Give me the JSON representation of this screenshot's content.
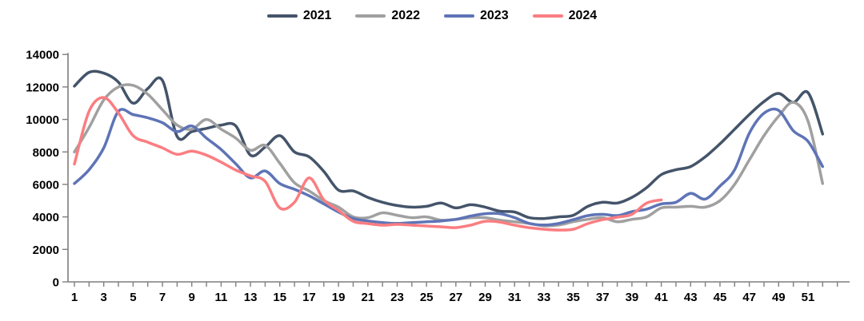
{
  "chart_data": {
    "type": "line",
    "title": "",
    "xlabel": "",
    "ylabel": "",
    "x_unit": "week-number",
    "x_weeks_range": [
      1,
      52
    ],
    "x_tick_labels": [
      1,
      3,
      5,
      7,
      9,
      11,
      13,
      15,
      17,
      19,
      21,
      23,
      25,
      27,
      29,
      31,
      33,
      35,
      37,
      39,
      41,
      43,
      45,
      47,
      49,
      51
    ],
    "y_ticks": [
      0,
      2000,
      4000,
      6000,
      8000,
      10000,
      12000,
      14000
    ],
    "ylim": [
      0,
      14000
    ],
    "grid": false,
    "smoothed_lines": true,
    "legend_position": "top",
    "axis_color": "#7F7F7F",
    "label_color": "#000000",
    "series": [
      {
        "name": "2021",
        "color": "#44546A",
        "values": [
          12050,
          12900,
          12850,
          12300,
          11000,
          11900,
          12400,
          8950,
          9250,
          9450,
          9650,
          9600,
          7800,
          8300,
          9000,
          8000,
          7700,
          6800,
          5650,
          5600,
          5200,
          4900,
          4700,
          4600,
          4650,
          4850,
          4550,
          4750,
          4600,
          4350,
          4300,
          3950,
          3900,
          4000,
          4100,
          4650,
          4900,
          4850,
          5200,
          5800,
          6600,
          6900,
          7100,
          7700,
          8500,
          9400,
          10300,
          11100,
          11600,
          11050,
          11650,
          9100
        ]
      },
      {
        "name": "2022",
        "color": "#A0A0A0",
        "values": [
          8000,
          9500,
          11200,
          12000,
          12100,
          11550,
          10600,
          9650,
          9400,
          10000,
          9400,
          8850,
          8100,
          8400,
          7300,
          6100,
          5600,
          5000,
          4600,
          4000,
          3950,
          4250,
          4100,
          3950,
          4000,
          3800,
          3850,
          3950,
          3950,
          3800,
          3700,
          3600,
          3450,
          3500,
          3700,
          3850,
          3950,
          3700,
          3850,
          4000,
          4550,
          4600,
          4650,
          4600,
          5000,
          6000,
          7500,
          9000,
          10200,
          11050,
          9900,
          6050
        ]
      },
      {
        "name": "2023",
        "color": "#5F74B6",
        "values": [
          6050,
          6900,
          8250,
          10500,
          10300,
          10100,
          9800,
          9250,
          9600,
          8850,
          8150,
          7270,
          6400,
          6830,
          6050,
          5700,
          5300,
          4800,
          4300,
          3900,
          3750,
          3650,
          3600,
          3650,
          3700,
          3750,
          3850,
          4050,
          4200,
          4200,
          3950,
          3600,
          3500,
          3600,
          3830,
          4080,
          4160,
          4080,
          4320,
          4480,
          4800,
          4900,
          5450,
          5100,
          5900,
          6900,
          9150,
          10380,
          10560,
          9300,
          8650,
          7100
        ]
      },
      {
        "name": "2024",
        "color": "#FB7D81",
        "values": [
          7250,
          10500,
          11350,
          10400,
          9000,
          8600,
          8250,
          7850,
          8050,
          7800,
          7370,
          6880,
          6530,
          6190,
          4550,
          4900,
          6400,
          5050,
          4400,
          3730,
          3590,
          3490,
          3540,
          3490,
          3440,
          3390,
          3340,
          3490,
          3730,
          3680,
          3490,
          3340,
          3240,
          3190,
          3240,
          3590,
          3830,
          3980,
          4160,
          4850,
          5050
        ]
      }
    ]
  }
}
